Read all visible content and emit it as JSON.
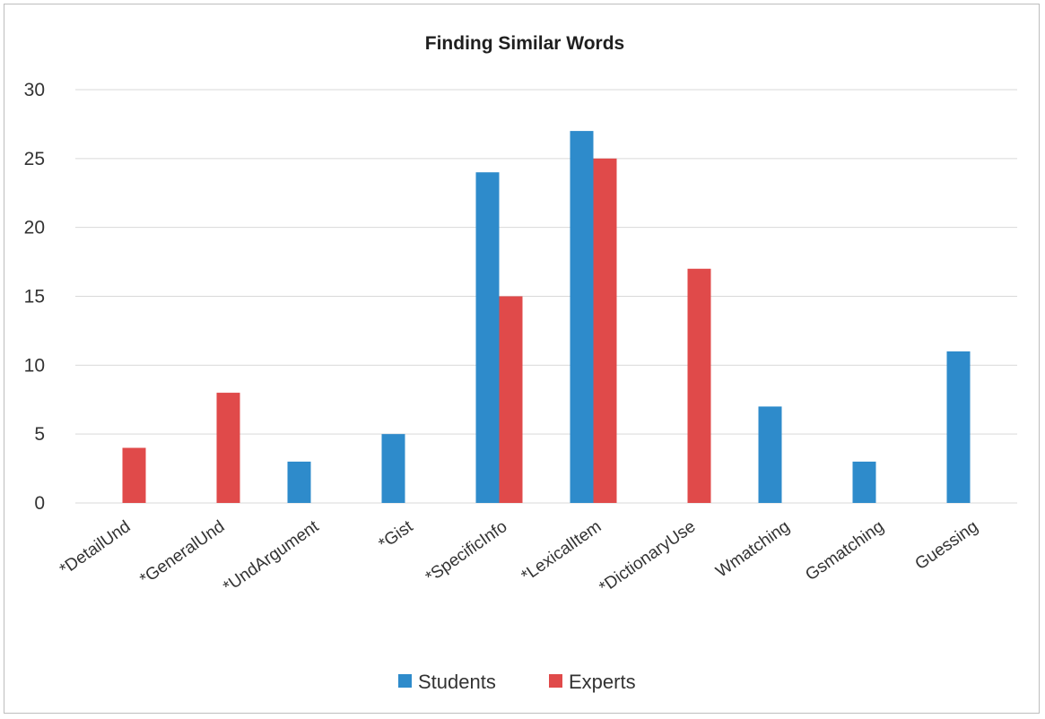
{
  "chart_data": {
    "type": "bar",
    "title": "Finding Similar Words",
    "xlabel": "",
    "ylabel": "",
    "ylim": [
      0,
      30
    ],
    "yticks": [
      0,
      5,
      10,
      15,
      20,
      25,
      30
    ],
    "grid": true,
    "legend_position": "bottom",
    "categories": [
      "*DetailUnd",
      "*GeneralUnd",
      "*UndArgument",
      "*Gist",
      "*SpecificInfo",
      "*LexicalItem",
      "*DictionaryUse",
      "Wmatching",
      "Gsmatching",
      "Guessing"
    ],
    "series": [
      {
        "name": "Students",
        "color": "#2e8bcb",
        "values": [
          0,
          0,
          3,
          5,
          24,
          27,
          0,
          7,
          3,
          11
        ]
      },
      {
        "name": "Experts",
        "color": "#e04a4a",
        "values": [
          4,
          8,
          0,
          0,
          15,
          25,
          17,
          0,
          0,
          0
        ]
      }
    ]
  }
}
